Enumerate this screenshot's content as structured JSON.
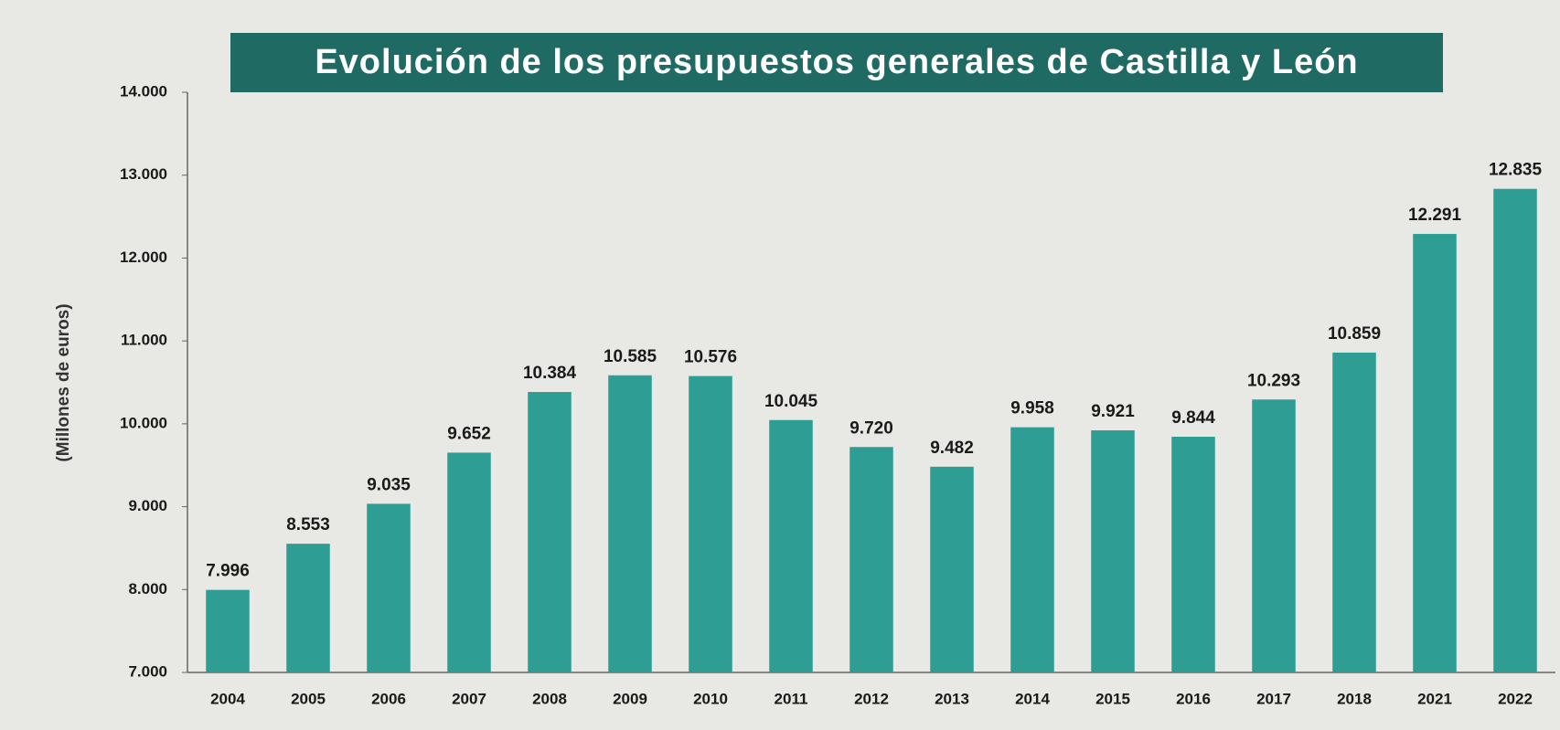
{
  "chart_data": {
    "type": "bar",
    "title": "Evolución de los presupuestos generales de Castilla y León",
    "y_label": "(Millones de euros)",
    "categories": [
      "2004",
      "2005",
      "2006",
      "2007",
      "2008",
      "2009",
      "2010",
      "2011",
      "2012",
      "2013",
      "2014",
      "2015",
      "2016",
      "2017",
      "2018",
      "2021",
      "2022"
    ],
    "values": [
      7996,
      8553,
      9035,
      9652,
      10384,
      10585,
      10576,
      10045,
      9720,
      9482,
      9958,
      9921,
      9844,
      10293,
      10859,
      12291,
      12835
    ],
    "value_labels": [
      "7.996",
      "8.553",
      "9.035",
      "9.652",
      "10.384",
      "10.585",
      "10.576",
      "10.045",
      "9.720",
      "9.482",
      "9.958",
      "9.921",
      "9.844",
      "10.293",
      "10.859",
      "12.291",
      "12.835"
    ],
    "color": "#2e9e94",
    "ylim": [
      7000,
      14000
    ],
    "yticks": [
      {
        "value": 7000,
        "label": "7.000"
      },
      {
        "value": 8000,
        "label": "8.000"
      },
      {
        "value": 9000,
        "label": "9.000"
      },
      {
        "value": 10000,
        "label": "10.000"
      },
      {
        "value": 11000,
        "label": "11.000"
      },
      {
        "value": 12000,
        "label": "12.000"
      },
      {
        "value": 13000,
        "label": "13.000"
      },
      {
        "value": 14000,
        "label": "14.000"
      }
    ],
    "grid": false
  }
}
